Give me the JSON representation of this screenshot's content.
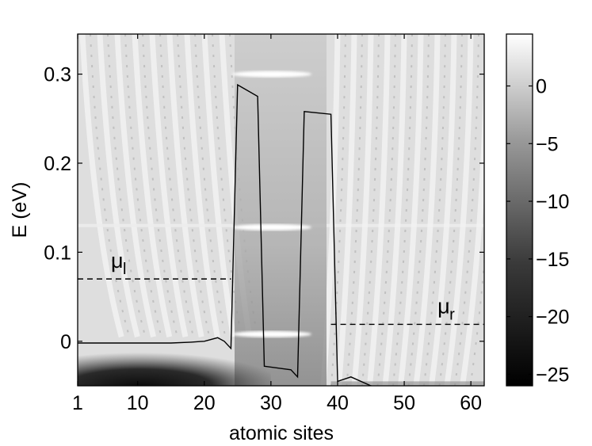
{
  "chart_data": {
    "type": "heatmap",
    "title": "",
    "xlabel": "atomic sites",
    "ylabel": "E (eV)",
    "xlim": [
      1,
      62
    ],
    "ylim": [
      -0.05,
      0.345
    ],
    "x_ticks": [
      1,
      10,
      20,
      30,
      40,
      50,
      60
    ],
    "y_ticks": [
      0,
      0.1,
      0.2,
      0.3
    ],
    "x_tick_labels": [
      "1",
      "10",
      "20",
      "30",
      "40",
      "50",
      "60"
    ],
    "y_tick_labels": [
      "0",
      "0.1",
      "0.2",
      "0.3"
    ],
    "colorbar": {
      "colormap": "gray",
      "range": [
        -26,
        4.5
      ],
      "ticks": [
        0,
        -5,
        -10,
        -15,
        -20,
        -25
      ],
      "tick_labels": [
        "0",
        "−5",
        "−10",
        "−15",
        "−20",
        "−25"
      ]
    },
    "potential_profile": {
      "x": [
        1,
        5,
        10,
        15,
        18,
        20,
        22,
        23,
        24,
        25,
        28,
        29,
        33,
        34,
        35,
        39,
        40,
        42,
        45,
        50,
        55,
        62
      ],
      "y": [
        -0.002,
        -0.002,
        -0.002,
        -0.002,
        -0.001,
        0.0,
        0.004,
        0.0,
        -0.008,
        0.288,
        0.275,
        -0.028,
        -0.032,
        -0.04,
        0.258,
        0.255,
        -0.045,
        -0.04,
        -0.05,
        -0.055,
        -0.06,
        -0.06
      ]
    },
    "chemical_potentials": [
      {
        "label": "μ",
        "subscript": "l",
        "energy": 0.07,
        "x_range": [
          1,
          24
        ]
      },
      {
        "label": "μ",
        "subscript": "r",
        "energy": 0.019,
        "x_range": [
          39,
          62
        ]
      }
    ],
    "resonance_energies": [
      0.008,
      0.128,
      0.3
    ]
  }
}
